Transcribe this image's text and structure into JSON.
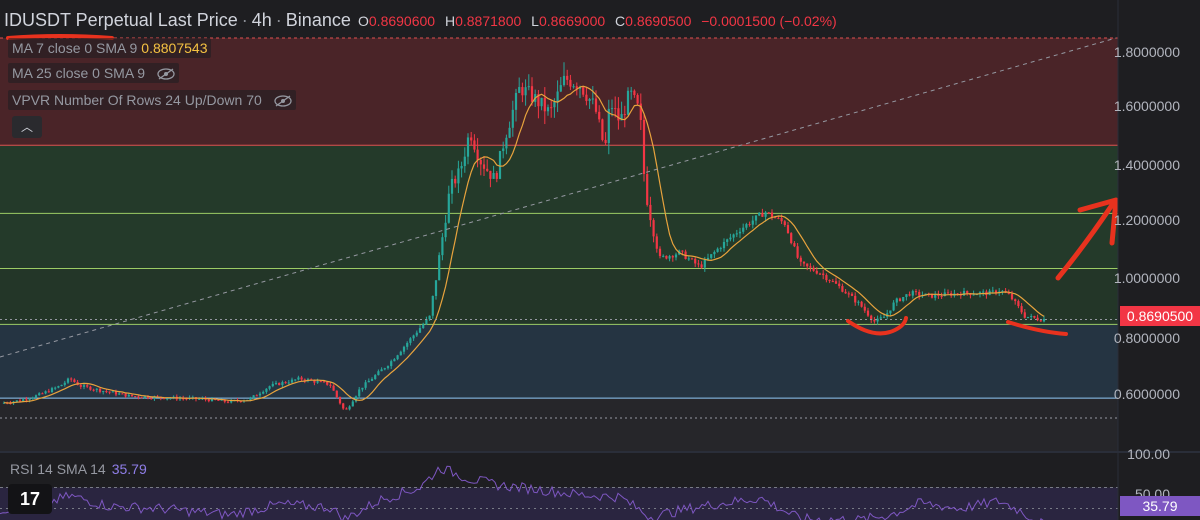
{
  "header": {
    "symbol": "IDUSDT Perpetual Last Price",
    "interval": "4h",
    "exchange": "Binance"
  },
  "ohlc": {
    "open_label": "O",
    "open": "0.8690600",
    "high_label": "H",
    "high": "0.8871800",
    "low_label": "L",
    "low": "0.8669000",
    "close_label": "C",
    "close": "0.8690500",
    "change": "−0.0001500 (−0.02%)"
  },
  "legends": {
    "ma7": {
      "label": "MA 7 close 0 SMA 9",
      "value": "0.8807543"
    },
    "ma25": {
      "label": "MA 25 close 0 SMA 9"
    },
    "vpvr": {
      "label": "VPVR Number Of Rows 24 Up/Down 70"
    },
    "rsi": {
      "label": "RSI 14 SMA 14",
      "value": "35.79"
    }
  },
  "price_axis": {
    "labels": [
      "1.8000000",
      "1.6000000",
      "1.4000000",
      "1.2000000",
      "1.0000000",
      "0.8000000",
      "0.6000000"
    ],
    "current_price": "0.8690500"
  },
  "rsi_axis": {
    "label_100": "100.00",
    "label_50": "50.00",
    "current": "35.79"
  },
  "colors": {
    "up": "#26a69a",
    "down": "#f23645",
    "ma": "#e8a33d",
    "rsi": "#7e57c2",
    "zone_red": "#4a2428",
    "zone_green": "#243a2a",
    "zone_blue": "#253442",
    "annotation": "#e8321e"
  },
  "icons": {
    "collapse": "chevron-up-icon",
    "eye": "eye-off-icon",
    "logo": "tradingview-logo"
  },
  "chart_data": {
    "type": "candlestick",
    "title": "IDUSDT Perpetual Last Price",
    "ylim": [
      0.5,
      1.85
    ],
    "levels": [
      1.47,
      1.235,
      1.045,
      0.852,
      0.598
    ],
    "close_path": [
      [
        0,
        0.58
      ],
      [
        20,
        0.59
      ],
      [
        40,
        0.61
      ],
      [
        60,
        0.64
      ],
      [
        70,
        0.665
      ],
      [
        80,
        0.64
      ],
      [
        100,
        0.625
      ],
      [
        130,
        0.605
      ],
      [
        160,
        0.6
      ],
      [
        200,
        0.595
      ],
      [
        230,
        0.585
      ],
      [
        250,
        0.595
      ],
      [
        270,
        0.64
      ],
      [
        300,
        0.665
      ],
      [
        330,
        0.645
      ],
      [
        345,
        0.55
      ],
      [
        360,
        0.63
      ],
      [
        390,
        0.72
      ],
      [
        410,
        0.8
      ],
      [
        430,
        0.88
      ],
      [
        440,
        1.1
      ],
      [
        450,
        1.32
      ],
      [
        460,
        1.38
      ],
      [
        470,
        1.52
      ],
      [
        480,
        1.42
      ],
      [
        495,
        1.35
      ],
      [
        505,
        1.5
      ],
      [
        520,
        1.67
      ],
      [
        535,
        1.63
      ],
      [
        550,
        1.58
      ],
      [
        565,
        1.7
      ],
      [
        580,
        1.68
      ],
      [
        595,
        1.6
      ],
      [
        605,
        1.45
      ],
      [
        610,
        1.62
      ],
      [
        620,
        1.55
      ],
      [
        630,
        1.65
      ],
      [
        640,
        1.58
      ],
      [
        645,
        1.32
      ],
      [
        652,
        1.2
      ],
      [
        660,
        1.08
      ],
      [
        680,
        1.1
      ],
      [
        700,
        1.05
      ],
      [
        720,
        1.12
      ],
      [
        740,
        1.18
      ],
      [
        765,
        1.24
      ],
      [
        785,
        1.2
      ],
      [
        800,
        1.06
      ],
      [
        820,
        1.03
      ],
      [
        840,
        0.98
      ],
      [
        860,
        0.92
      ],
      [
        875,
        0.86
      ],
      [
        885,
        0.88
      ],
      [
        895,
        0.93
      ],
      [
        910,
        0.96
      ],
      [
        930,
        0.95
      ],
      [
        960,
        0.96
      ],
      [
        990,
        0.96
      ],
      [
        1000,
        0.97
      ],
      [
        1010,
        0.95
      ],
      [
        1025,
        0.88
      ],
      [
        1040,
        0.87
      ]
    ],
    "rsi_path": [
      [
        0,
        49
      ],
      [
        40,
        53
      ],
      [
        70,
        62
      ],
      [
        110,
        52
      ],
      [
        160,
        50
      ],
      [
        230,
        44
      ],
      [
        280,
        54
      ],
      [
        330,
        51
      ],
      [
        345,
        40
      ],
      [
        380,
        58
      ],
      [
        420,
        70
      ],
      [
        440,
        89
      ],
      [
        470,
        78
      ],
      [
        500,
        72
      ],
      [
        540,
        68
      ],
      [
        580,
        63
      ],
      [
        620,
        61
      ],
      [
        650,
        42
      ],
      [
        700,
        52
      ],
      [
        760,
        60
      ],
      [
        800,
        40
      ],
      [
        860,
        39
      ],
      [
        890,
        44
      ],
      [
        920,
        55
      ],
      [
        960,
        50
      ],
      [
        1000,
        57
      ],
      [
        1020,
        48
      ],
      [
        1040,
        36
      ]
    ],
    "current_price": 0.86905,
    "current_rsi": 35.79
  }
}
